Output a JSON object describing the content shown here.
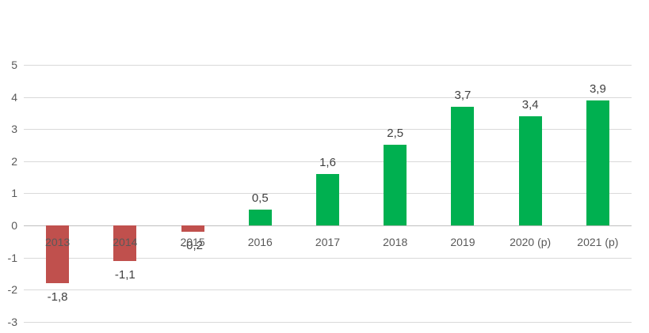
{
  "chart_data": {
    "type": "bar",
    "title": "",
    "categories": [
      "2013",
      "2014",
      "2015",
      "2016",
      "2017",
      "2018",
      "2019",
      "2020 (p)",
      "2021 (p)"
    ],
    "values": [
      -1.8,
      -1.1,
      -0.2,
      0.5,
      1.6,
      2.5,
      3.7,
      3.4,
      3.9
    ],
    "value_labels": [
      "-1,8",
      "-1,1",
      "-0,2",
      "0,5",
      "1,6",
      "2,5",
      "3,7",
      "3,4",
      "3,9"
    ],
    "yticks": [
      "5",
      "4",
      "3",
      "2",
      "1",
      "0",
      "-1",
      "-2",
      "-3"
    ],
    "ytick_values": [
      5,
      4,
      3,
      2,
      1,
      0,
      -1,
      -2,
      -3
    ],
    "ylim": [
      -3,
      5
    ],
    "grid": true,
    "legend": "none",
    "xlabel": "",
    "ylabel": "",
    "colors": {
      "positive": "#00B050",
      "negative": "#C0504D",
      "gridline": "#D9D9D9",
      "zero_line": "#BFBFBF",
      "axis_text": "#595959",
      "label_text": "#404040"
    }
  }
}
